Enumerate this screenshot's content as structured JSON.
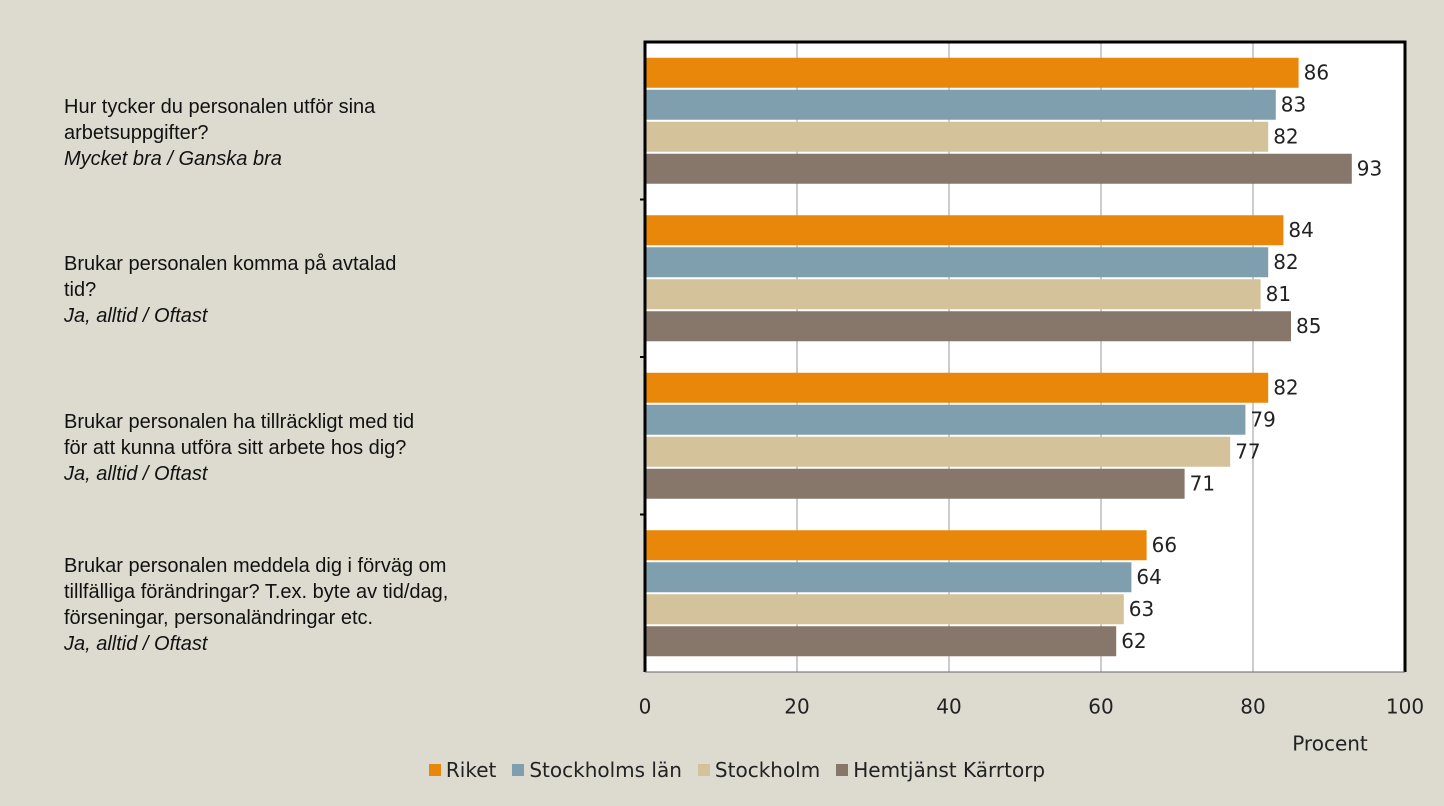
{
  "chart_data": {
    "type": "hbar",
    "categories": [
      "Hur tycker du personalen utför sina\narbetsuppgifter?",
      "Brukar personalen komma på avtalad\ntid?",
      "Brukar personalen ha tillräckligt med tid\nför att kunna utföra sitt arbete hos dig?",
      "Brukar personalen meddela dig i förväg om\ntillfälliga förändringar? T.ex. byte av tid/dag,\nförseningar, personaländringar etc."
    ],
    "answers": [
      "Mycket bra / Ganska bra",
      "Ja, alltid / Oftast",
      "Ja, alltid / Oftast",
      "Ja, alltid / Oftast"
    ],
    "series": [
      {
        "name": "Riket",
        "color": "#e8870a",
        "values": [
          86,
          84,
          82,
          66
        ]
      },
      {
        "name": "Stockholms län",
        "color": "#7f9fae",
        "values": [
          83,
          82,
          79,
          64
        ]
      },
      {
        "name": "Stockholm",
        "color": "#d4c29a",
        "values": [
          82,
          81,
          77,
          63
        ]
      },
      {
        "name": "Hemtjänst Kärrtorp",
        "color": "#87766a",
        "values": [
          93,
          85,
          71,
          62
        ]
      }
    ],
    "xlabel": "Procent",
    "xlim": [
      0,
      100
    ],
    "xticks": [
      0,
      20,
      40,
      60,
      80,
      100
    ],
    "grid": true
  }
}
